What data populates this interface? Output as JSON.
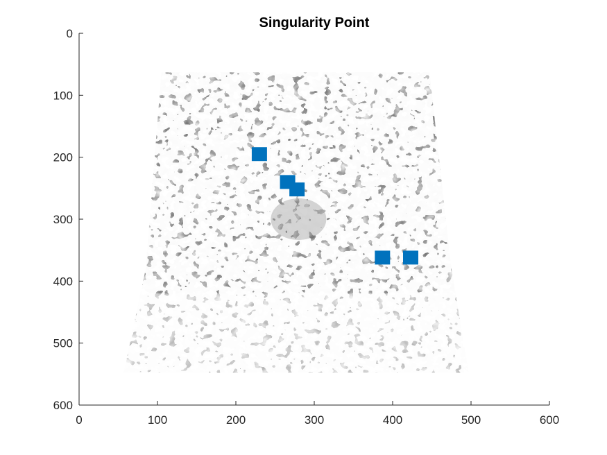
{
  "chart_data": {
    "type": "scatter",
    "title": "Singularity Point",
    "xlabel": "",
    "ylabel": "",
    "xlim": [
      0,
      600
    ],
    "ylim": [
      0,
      600
    ],
    "y_reversed": true,
    "grid": false,
    "x_ticks": [
      0,
      100,
      200,
      300,
      400,
      500,
      600
    ],
    "y_ticks": [
      0,
      100,
      200,
      300,
      400,
      500,
      600
    ],
    "background_image": "fingerprint",
    "marker_color": "#0072BD",
    "series": [
      {
        "points": [
          {
            "x": 230,
            "y": 195
          },
          {
            "x": 266,
            "y": 240
          },
          {
            "x": 278,
            "y": 252
          },
          {
            "x": 387,
            "y": 362
          },
          {
            "x": 423,
            "y": 362
          }
        ]
      }
    ]
  }
}
